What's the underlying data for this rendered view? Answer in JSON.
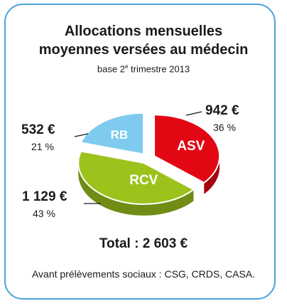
{
  "title_line1": "Allocations mensuelles",
  "title_line2": "moyennes versées au médecin",
  "subtitle_main": "base 2",
  "subtitle_sup": "e",
  "subtitle_rest": " trimestre 2013",
  "total": "Total : 2 603 €",
  "footnote": "Avant prélèvements sociaux : CSG, CRDS, CASA.",
  "chart_data": {
    "type": "pie",
    "title": "Allocations mensuelles moyennes versées au médecin",
    "subtitle": "base 2e trimestre 2013",
    "slices": [
      {
        "name": "ASV",
        "value": 942,
        "amount_label": "942 €",
        "percent_label": "36 %",
        "color": "#e30613"
      },
      {
        "name": "RCV",
        "value": 1129,
        "amount_label": "1 129 €",
        "percent_label": "43 %",
        "color": "#9bc31c"
      },
      {
        "name": "RB",
        "value": 532,
        "amount_label": "532 €",
        "percent_label": "21 %",
        "color": "#7ecbef"
      }
    ],
    "total": 2603,
    "unit": "€"
  }
}
